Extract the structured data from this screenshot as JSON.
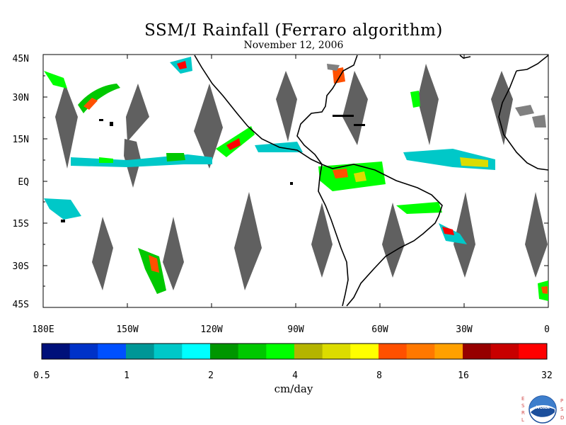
{
  "title": "SSM/I Rainfall (Ferraro algorithm)",
  "date": "November 12, 2006",
  "map": {
    "lat_labels": [
      "45N",
      "30N",
      "15N",
      "EQ",
      "15S",
      "30S",
      "45S"
    ],
    "lon_labels": [
      "180E",
      "150W",
      "120W",
      "90W",
      "60W",
      "30W",
      "0"
    ]
  },
  "colorbar": {
    "unit": "cm/day",
    "ticks": [
      "0.5",
      "1",
      "2",
      "4",
      "8",
      "16",
      "32"
    ],
    "colors": [
      "#00107a",
      "#0032c8",
      "#0050ff",
      "#009696",
      "#00c8c8",
      "#00ffff",
      "#009600",
      "#00c800",
      "#00ff00",
      "#b4b400",
      "#dcdc00",
      "#ffff00",
      "#ff5000",
      "#ff7800",
      "#ffa000",
      "#960000",
      "#c80000",
      "#ff0000"
    ]
  },
  "logo": {
    "left_text": "ESRL",
    "right_text": "PSD",
    "center_text": "NOAA"
  }
}
